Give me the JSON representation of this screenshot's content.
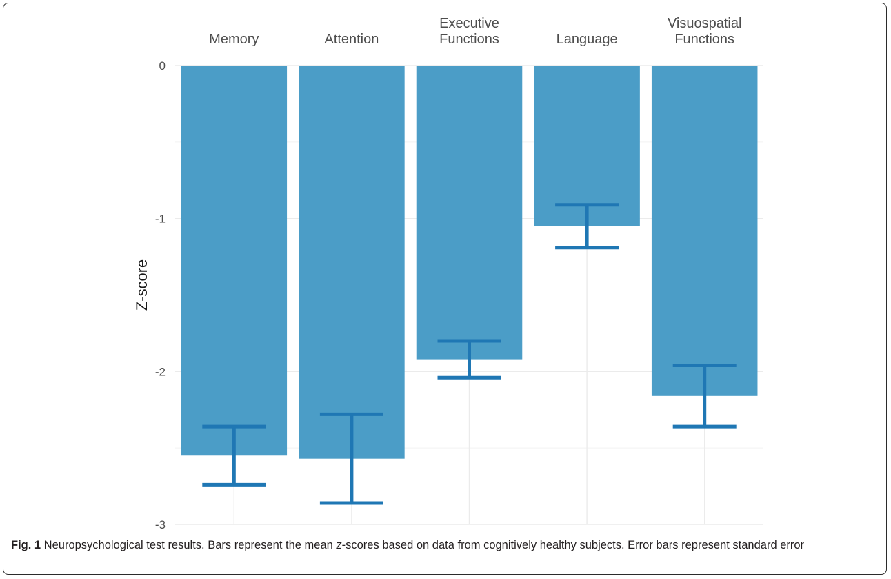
{
  "caption": {
    "fig_label": "Fig. 1",
    "text_1": " Neuropsychological test results. Bars represent the mean ",
    "italic": "z",
    "text_2": "-scores based on data from cognitively healthy subjects. Error bars represent standard error"
  },
  "colors": {
    "bar": "#4b9dc7",
    "error_bar": "#1f77b4",
    "grid": "#ebebeb"
  },
  "chart_data": {
    "type": "bar",
    "categories": [
      [
        "Memory"
      ],
      [
        "Attention"
      ],
      [
        "Executive",
        "Functions"
      ],
      [
        "Language"
      ],
      [
        "Visuospatial",
        "Functions"
      ]
    ],
    "values": [
      -2.55,
      -2.57,
      -1.92,
      -1.05,
      -2.16
    ],
    "error_low": [
      -2.74,
      -2.86,
      -2.04,
      -1.19,
      -2.36
    ],
    "error_high": [
      -2.36,
      -2.28,
      -1.8,
      -0.91,
      -1.96
    ],
    "ylabel": "Z-score",
    "ylim": [
      -3,
      0
    ],
    "yticks": [
      0,
      -1,
      -2,
      -3
    ],
    "ytick_labels": [
      "0",
      "-1",
      "-2",
      "-3"
    ],
    "x_axis_position": "top",
    "grid": true
  }
}
